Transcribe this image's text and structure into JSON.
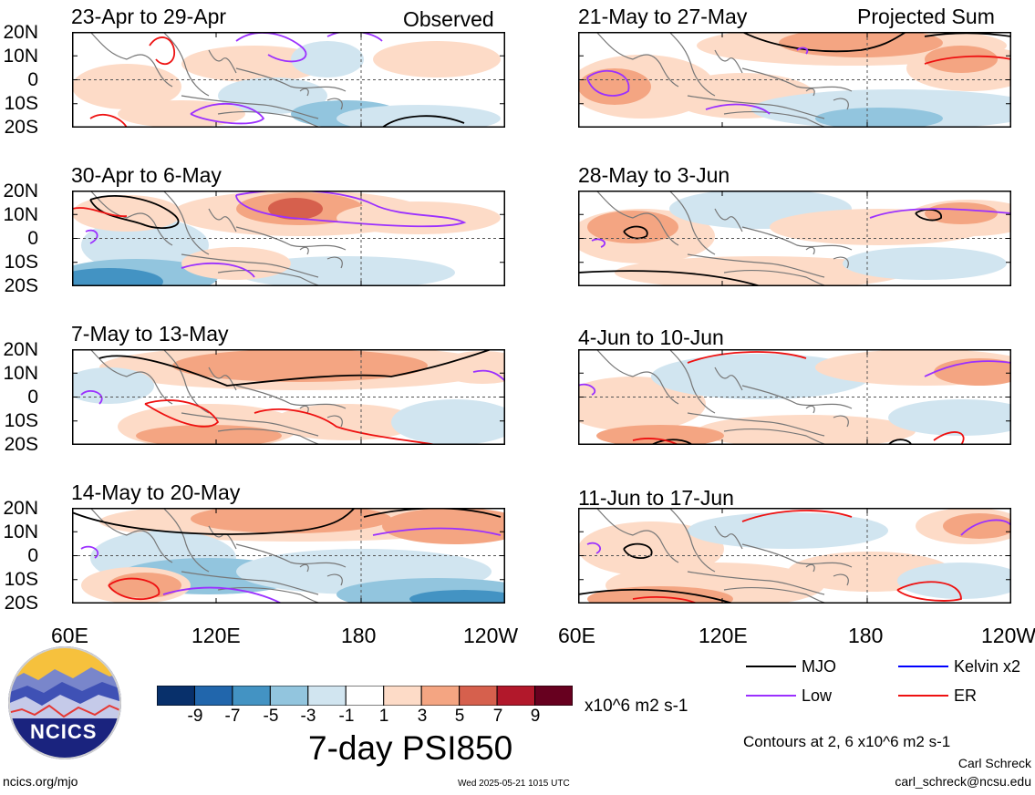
{
  "left_column": {
    "tag": "Observed",
    "panels": [
      {
        "title": "23-Apr to 29-Apr"
      },
      {
        "title": "30-Apr to 6-May"
      },
      {
        "title": "7-May to 13-May"
      },
      {
        "title": "14-May to 20-May"
      }
    ]
  },
  "right_column": {
    "tag": "Projected Sum",
    "panels": [
      {
        "title": "21-May to 27-May"
      },
      {
        "title": "28-May to 3-Jun"
      },
      {
        "title": "4-Jun to 10-Jun"
      },
      {
        "title": "11-Jun to 17-Jun"
      }
    ]
  },
  "lat_labels": [
    "20N",
    "10N",
    "0",
    "10S",
    "20S"
  ],
  "lon_labels": [
    "60E",
    "120E",
    "180",
    "120W"
  ],
  "colorbar": {
    "colors": [
      "#08306b",
      "#2166ac",
      "#4393c3",
      "#92c5de",
      "#d1e5f0",
      "#ffffff",
      "#fddbc7",
      "#f4a582",
      "#d6604d",
      "#b2182b",
      "#67001f"
    ],
    "labels": [
      "-9",
      "-7",
      "-5",
      "-3",
      "-1",
      "1",
      "3",
      "5",
      "7",
      "9"
    ],
    "units": "x10^6 m2 s-1",
    "title": "7-day PSI850"
  },
  "legend": {
    "items": [
      {
        "label": "MJO",
        "color": "#000000"
      },
      {
        "label": "Kelvin x2",
        "color": "#0000ff"
      },
      {
        "label": "Low",
        "color": "#9b30ff"
      },
      {
        "label": "ER",
        "color": "#ee1111"
      }
    ],
    "contours_note": "Contours at 2, 6 x10^6 m2 s-1"
  },
  "footer": {
    "logo_text": "NCICS",
    "url": "ncics.org/mjo",
    "timestamp": "Wed 2025-05-21 1015 UTC",
    "author": "Carl Schreck",
    "email": "carl_schreck@ncsu.edu"
  }
}
